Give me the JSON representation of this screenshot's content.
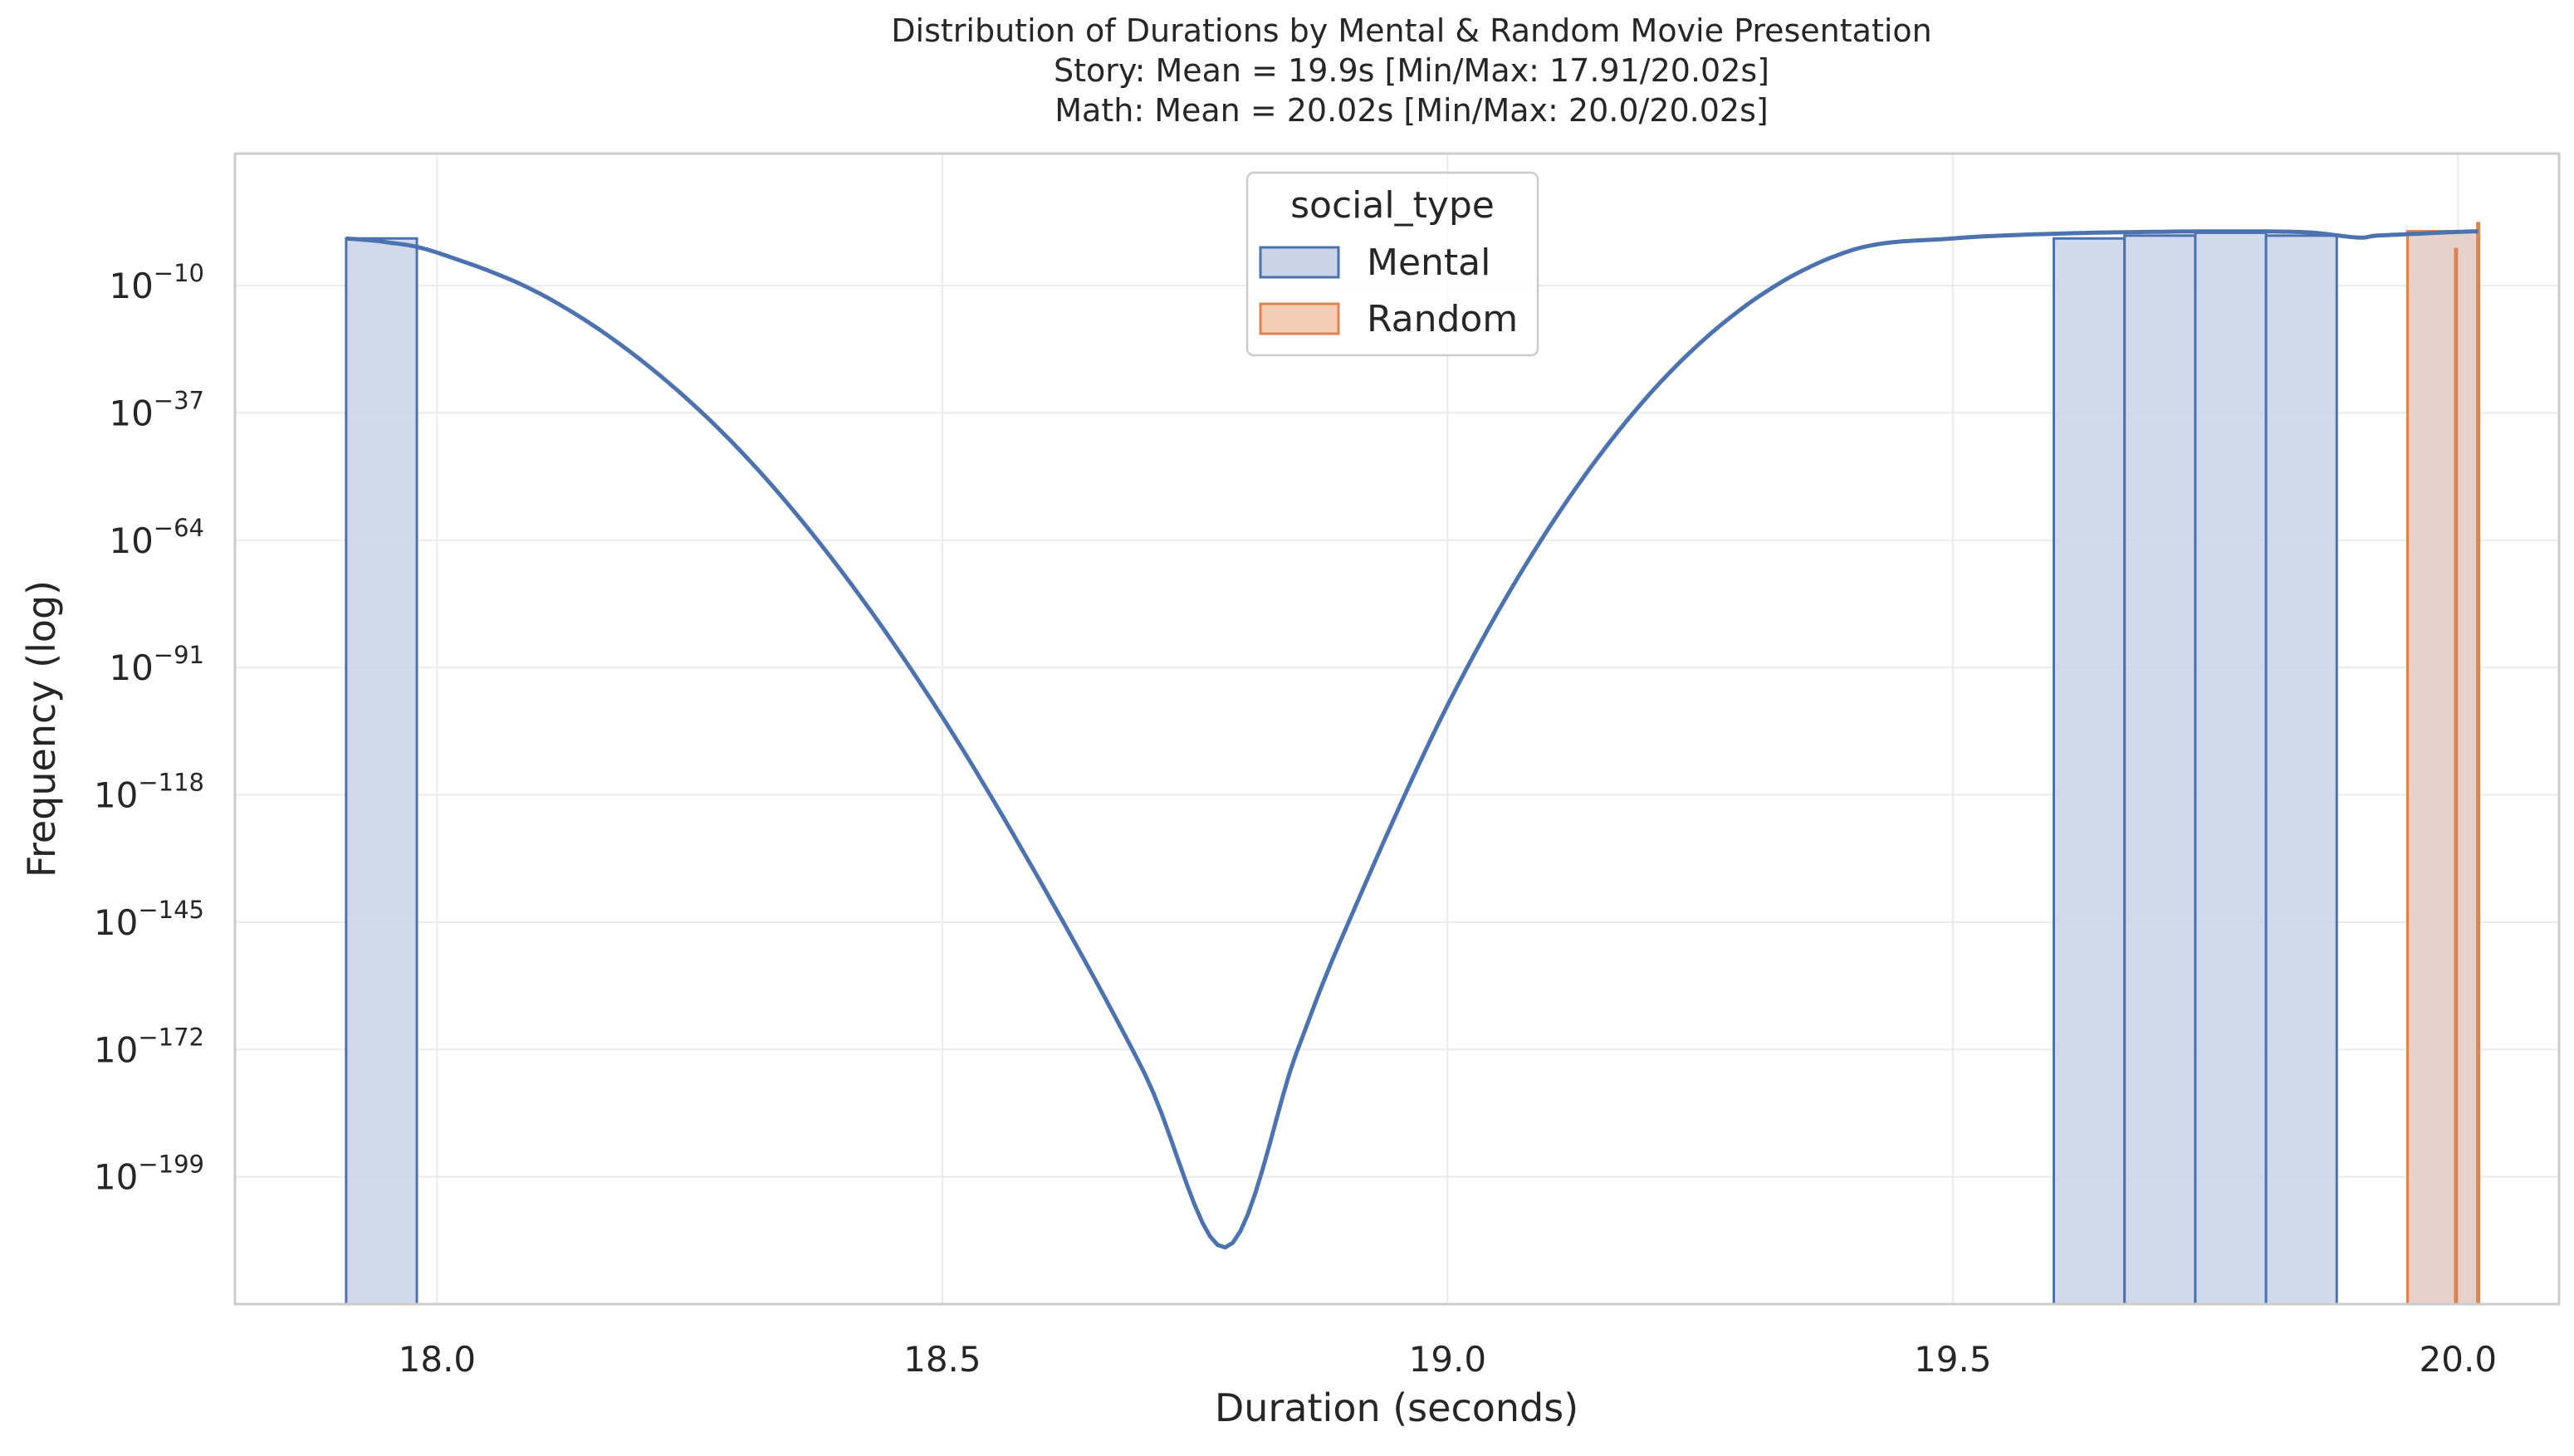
{
  "chart_data": {
    "type": "histogram",
    "title": [
      "Distribution of Durations by Mental & Random Movie Presentation",
      "Story: Mean = 19.9s [Min/Max: 17.91/20.02s]",
      "Math: Mean = 20.02s [Min/Max: 20.0/20.02s]"
    ],
    "xlabel": "Duration (seconds)",
    "ylabel": "Frequency (log)",
    "xlim": [
      17.8,
      20.1
    ],
    "xticks": [
      18.0,
      18.5,
      19.0,
      19.5,
      20.0
    ],
    "xtick_labels": [
      "18.0",
      "18.5",
      "19.0",
      "19.5",
      "20.0"
    ],
    "y_scale": "log",
    "ylim_log10": [
      -226,
      18
    ],
    "yticks_log10": [
      -10,
      -37,
      -64,
      -91,
      -118,
      -145,
      -172,
      -199
    ],
    "ytick_labels": [
      {
        "base": "10",
        "exp": "−10"
      },
      {
        "base": "10",
        "exp": "−37"
      },
      {
        "base": "10",
        "exp": "−64"
      },
      {
        "base": "10",
        "exp": "−91"
      },
      {
        "base": "10",
        "exp": "−118"
      },
      {
        "base": "10",
        "exp": "−145"
      },
      {
        "base": "10",
        "exp": "−172"
      },
      {
        "base": "10",
        "exp": "−199"
      }
    ],
    "grid": true,
    "legend": {
      "title": "social_type",
      "placement": "top-center",
      "entries": [
        "Mental",
        "Random"
      ]
    },
    "series": [
      {
        "name": "Mental",
        "color": "#4c72b0",
        "fill": "#c9d4e8",
        "bars": [
          {
            "x0": 17.91,
            "x1": 17.98,
            "log10_count": 0.0
          },
          {
            "x0": 19.6,
            "x1": 19.67,
            "log10_count": 0.0
          },
          {
            "x0": 19.67,
            "x1": 19.74,
            "log10_count": 0.6
          },
          {
            "x0": 19.74,
            "x1": 19.81,
            "log10_count": 1.2
          },
          {
            "x0": 19.81,
            "x1": 19.88,
            "log10_count": 0.6
          },
          {
            "x0": 19.95,
            "x1": 20.02,
            "log10_count": 1.5
          }
        ],
        "kde": {
          "x": [
            17.91,
            17.95,
            18.0,
            18.1,
            18.2,
            18.3,
            18.4,
            18.5,
            18.6,
            18.7,
            18.78,
            18.85,
            18.9,
            19.0,
            19.1,
            19.2,
            19.3,
            19.4,
            19.5,
            19.6,
            19.7,
            19.78,
            19.85,
            19.9,
            19.92,
            19.96,
            20.0,
            20.02
          ],
          "log10_y": [
            0.0,
            -0.8,
            -3.0,
            -11.5,
            -25.5,
            -45.0,
            -70.5,
            -101.5,
            -137.5,
            -177.0,
            -214.0,
            -173.0,
            -146.0,
            -99.0,
            -61.5,
            -33.0,
            -13.5,
            -2.5,
            0.0,
            1.0,
            1.4,
            1.5,
            1.3,
            0.2,
            0.6,
            1.0,
            1.4,
            1.5
          ]
        }
      },
      {
        "name": "Random",
        "color": "#dd8452",
        "fill": "#f3cdb6",
        "bars": [
          {
            "x0": 19.95,
            "x1": 20.02,
            "log10_count": 1.5
          }
        ],
        "spikes": [
          {
            "x": 19.998,
            "log10_y": -2.0
          },
          {
            "x": 20.02,
            "log10_y": 3.5
          }
        ]
      }
    ]
  }
}
